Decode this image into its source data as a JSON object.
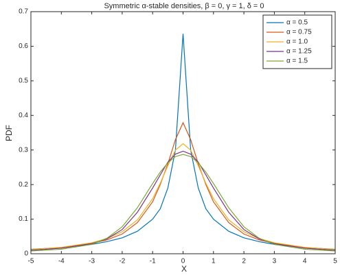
{
  "chart_data": {
    "type": "line",
    "title": "Symmetric α-stable densities, β = 0, γ = 1, δ = 0",
    "x_label": "X",
    "y_label": "PDF",
    "x": [
      -5,
      -4,
      -3,
      -2.5,
      -2,
      -1.5,
      -1,
      -0.75,
      -0.5,
      -0.25,
      0,
      0.25,
      0.5,
      0.75,
      1,
      1.5,
      2,
      2.5,
      3,
      4,
      5
    ],
    "series": [
      {
        "name": "α = 0.5",
        "color": "#0072bd",
        "values": [
          0.013,
          0.018,
          0.027,
          0.035,
          0.046,
          0.065,
          0.1,
          0.13,
          0.19,
          0.3,
          0.636,
          0.3,
          0.19,
          0.13,
          0.1,
          0.065,
          0.046,
          0.035,
          0.027,
          0.018,
          0.013
        ]
      },
      {
        "name": "α = 0.75",
        "color": "#d95319",
        "values": [
          0.012,
          0.018,
          0.03,
          0.04,
          0.057,
          0.09,
          0.15,
          0.2,
          0.26,
          0.33,
          0.379,
          0.33,
          0.26,
          0.2,
          0.15,
          0.09,
          0.057,
          0.04,
          0.03,
          0.018,
          0.012
        ]
      },
      {
        "name": "α = 1.0",
        "color": "#edb120",
        "values": [
          0.0122,
          0.0187,
          0.0318,
          0.0439,
          0.0637,
          0.0979,
          0.1592,
          0.2037,
          0.2546,
          0.2996,
          0.3183,
          0.2996,
          0.2546,
          0.2037,
          0.1592,
          0.0979,
          0.0637,
          0.0439,
          0.0318,
          0.0187,
          0.0122
        ]
      },
      {
        "name": "α = 1.25",
        "color": "#7e2f8e",
        "values": [
          0.01,
          0.016,
          0.029,
          0.043,
          0.07,
          0.12,
          0.19,
          0.228,
          0.265,
          0.288,
          0.2965,
          0.288,
          0.265,
          0.228,
          0.19,
          0.12,
          0.07,
          0.043,
          0.029,
          0.016,
          0.01
        ]
      },
      {
        "name": "α = 1.5",
        "color": "#77ac30",
        "values": [
          0.008,
          0.013,
          0.027,
          0.045,
          0.078,
          0.133,
          0.203,
          0.236,
          0.263,
          0.281,
          0.2873,
          0.281,
          0.263,
          0.236,
          0.203,
          0.133,
          0.078,
          0.045,
          0.027,
          0.013,
          0.008
        ]
      }
    ],
    "xlim": [
      -5,
      5
    ],
    "ylim": [
      0,
      0.7
    ],
    "xticks": [
      -5,
      -4,
      -3,
      -2,
      -1,
      0,
      1,
      2,
      3,
      4,
      5
    ],
    "yticks": [
      0,
      0.1,
      0.2,
      0.3,
      0.4,
      0.5,
      0.6,
      0.7
    ],
    "legend": "northeast"
  }
}
